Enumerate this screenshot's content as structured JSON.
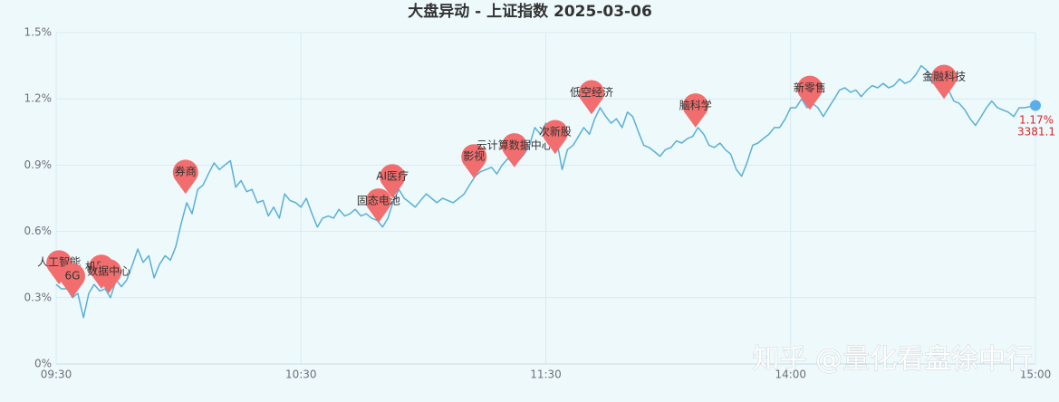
{
  "chart_data": {
    "type": "line",
    "title": "大盘异动 - 上证指数 2025-03-06",
    "xlim": [
      0,
      240
    ],
    "ylim": [
      0,
      1.5
    ],
    "xticks": [
      {
        "value": 0,
        "label": "09:30"
      },
      {
        "value": 60,
        "label": "10:30"
      },
      {
        "value": 120,
        "label": "11:30"
      },
      {
        "value": 180,
        "label": "14:00"
      },
      {
        "value": 240,
        "label": "15:00"
      }
    ],
    "yticks": [
      {
        "value": 0,
        "label": "0%"
      },
      {
        "value": 0.3,
        "label": "0.3%"
      },
      {
        "value": 0.6,
        "label": "0.6%"
      },
      {
        "value": 0.9,
        "label": "0.9%"
      },
      {
        "value": 1.2,
        "label": "1.2%"
      },
      {
        "value": 1.5,
        "label": "1.5%"
      }
    ],
    "grid": true,
    "x": [
      0,
      1.3,
      2.7,
      4,
      5.3,
      6.7,
      8,
      9.3,
      10.7,
      12,
      13.3,
      14.7,
      16,
      17.3,
      18.7,
      20,
      21.3,
      22.7,
      24,
      25.3,
      26.7,
      28,
      29.3,
      30.7,
      32,
      33.3,
      34.7,
      36,
      37.3,
      38.7,
      40,
      41.3,
      42.7,
      44,
      45.3,
      46.7,
      48,
      49.3,
      50.7,
      52,
      53.3,
      54.7,
      56,
      57.3,
      58.7,
      60,
      61.3,
      62.7,
      64,
      65.3,
      66.7,
      68,
      69.3,
      70.7,
      72,
      73.3,
      74.7,
      76,
      77.3,
      78.7,
      80,
      81.3,
      82.7,
      84,
      85.3,
      86.7,
      88,
      89.3,
      90.7,
      92,
      93.3,
      94.7,
      96,
      97.3,
      98.7,
      100,
      101.3,
      102.7,
      104,
      105.3,
      106.7,
      108,
      109.3,
      110.7,
      112,
      113.3,
      114.7,
      116,
      117.3,
      118.7,
      120,
      121.3,
      122.7,
      124,
      125.3,
      126.7,
      128,
      129.3,
      130.7,
      132,
      133.3,
      134.7,
      136,
      137.3,
      138.7,
      140,
      141.3,
      142.7,
      144,
      145.3,
      146.7,
      148,
      149.3,
      150.7,
      152,
      153.3,
      154.7,
      156,
      157.3,
      158.7,
      160,
      161.3,
      162.7,
      164,
      165.3,
      166.7,
      168,
      169.3,
      170.7,
      172,
      173.3,
      174.7,
      176,
      177.3,
      178.7,
      180,
      181.3,
      182.7,
      184,
      185.3,
      186.7,
      188,
      189.3,
      190.7,
      192,
      193.3,
      194.7,
      196,
      197.3,
      198.7,
      200,
      201.3,
      202.7,
      204,
      205.3,
      206.7,
      208,
      209.3,
      210.7,
      212,
      213.3,
      214.7,
      216,
      217.3,
      218.7,
      220,
      221.3,
      222.7,
      224,
      225.3,
      226.7,
      228,
      229.3,
      230.7,
      232,
      233.3,
      234.7,
      236,
      237.3,
      240
    ],
    "series": [
      {
        "color": "#5ab0d6",
        "values": [
          0.36,
          0.34,
          0.34,
          0.3,
          0.32,
          0.21,
          0.32,
          0.36,
          0.33,
          0.34,
          0.3,
          0.38,
          0.35,
          0.38,
          0.45,
          0.52,
          0.46,
          0.49,
          0.39,
          0.45,
          0.49,
          0.47,
          0.53,
          0.64,
          0.73,
          0.68,
          0.79,
          0.81,
          0.86,
          0.91,
          0.88,
          0.9,
          0.92,
          0.8,
          0.83,
          0.78,
          0.79,
          0.73,
          0.74,
          0.67,
          0.71,
          0.66,
          0.77,
          0.74,
          0.73,
          0.71,
          0.75,
          0.68,
          0.62,
          0.66,
          0.67,
          0.66,
          0.7,
          0.67,
          0.68,
          0.7,
          0.67,
          0.68,
          0.66,
          0.65,
          0.62,
          0.66,
          0.74,
          0.79,
          0.75,
          0.73,
          0.71,
          0.74,
          0.77,
          0.75,
          0.73,
          0.75,
          0.74,
          0.73,
          0.75,
          0.77,
          0.81,
          0.85,
          0.87,
          0.88,
          0.89,
          0.86,
          0.9,
          0.93,
          0.91,
          0.92,
          0.95,
          0.99,
          1.07,
          1.04,
          1.09,
          1.03,
          1.01,
          0.88,
          0.97,
          0.99,
          1.03,
          1.07,
          1.04,
          1.11,
          1.16,
          1.12,
          1.09,
          1.11,
          1.07,
          1.14,
          1.12,
          1.05,
          0.99,
          0.98,
          0.96,
          0.94,
          0.97,
          0.98,
          1.01,
          1.0,
          1.02,
          1.03,
          1.07,
          1.04,
          0.99,
          0.98,
          1.0,
          0.97,
          0.95,
          0.88,
          0.85,
          0.91,
          0.99,
          1.0,
          1.02,
          1.04,
          1.07,
          1.07,
          1.11,
          1.16,
          1.16,
          1.2,
          1.16,
          1.18,
          1.16,
          1.12,
          1.16,
          1.2,
          1.24,
          1.25,
          1.23,
          1.24,
          1.21,
          1.24,
          1.26,
          1.25,
          1.27,
          1.25,
          1.26,
          1.29,
          1.27,
          1.28,
          1.31,
          1.35,
          1.33,
          1.27,
          1.3,
          1.29,
          1.24,
          1.19,
          1.18,
          1.15,
          1.11,
          1.08,
          1.12,
          1.16,
          1.19,
          1.16,
          1.15,
          1.14,
          1.12,
          1.16,
          1.16,
          1.17
        ]
      }
    ],
    "end_labels": [
      "1.17%",
      "3381.1"
    ],
    "end_color": "#5aaee8",
    "end_label_color": "#d9262b",
    "pin_color": "#f26d6d",
    "annotations": [
      {
        "label": "人工智能",
        "x": 0.7,
        "y": 0.36
      },
      {
        "label": "6G",
        "x": 4.0,
        "y": 0.3
      },
      {
        "label": "机器人",
        "x": 11.1,
        "y": 0.34
      },
      {
        "label": "数据中心",
        "x": 12.9,
        "y": 0.32
      },
      {
        "label": "券商",
        "x": 31.7,
        "y": 0.77
      },
      {
        "label": "固态电池",
        "x": 79.0,
        "y": 0.64
      },
      {
        "label": "AI医疗",
        "x": 82.4,
        "y": 0.75
      },
      {
        "label": "影视",
        "x": 102.4,
        "y": 0.84
      },
      {
        "label": "云计算数据中心",
        "x": 112.3,
        "y": 0.89
      },
      {
        "label": "次新股",
        "x": 122.3,
        "y": 0.95
      },
      {
        "label": "低空经济",
        "x": 131.2,
        "y": 1.13
      },
      {
        "label": "脑科学",
        "x": 156.7,
        "y": 1.07
      },
      {
        "label": "新零售",
        "x": 184.7,
        "y": 1.15
      },
      {
        "label": "金融科技",
        "x": 217.6,
        "y": 1.2
      }
    ],
    "watermark": "知乎 @量化看盘徐中行"
  }
}
